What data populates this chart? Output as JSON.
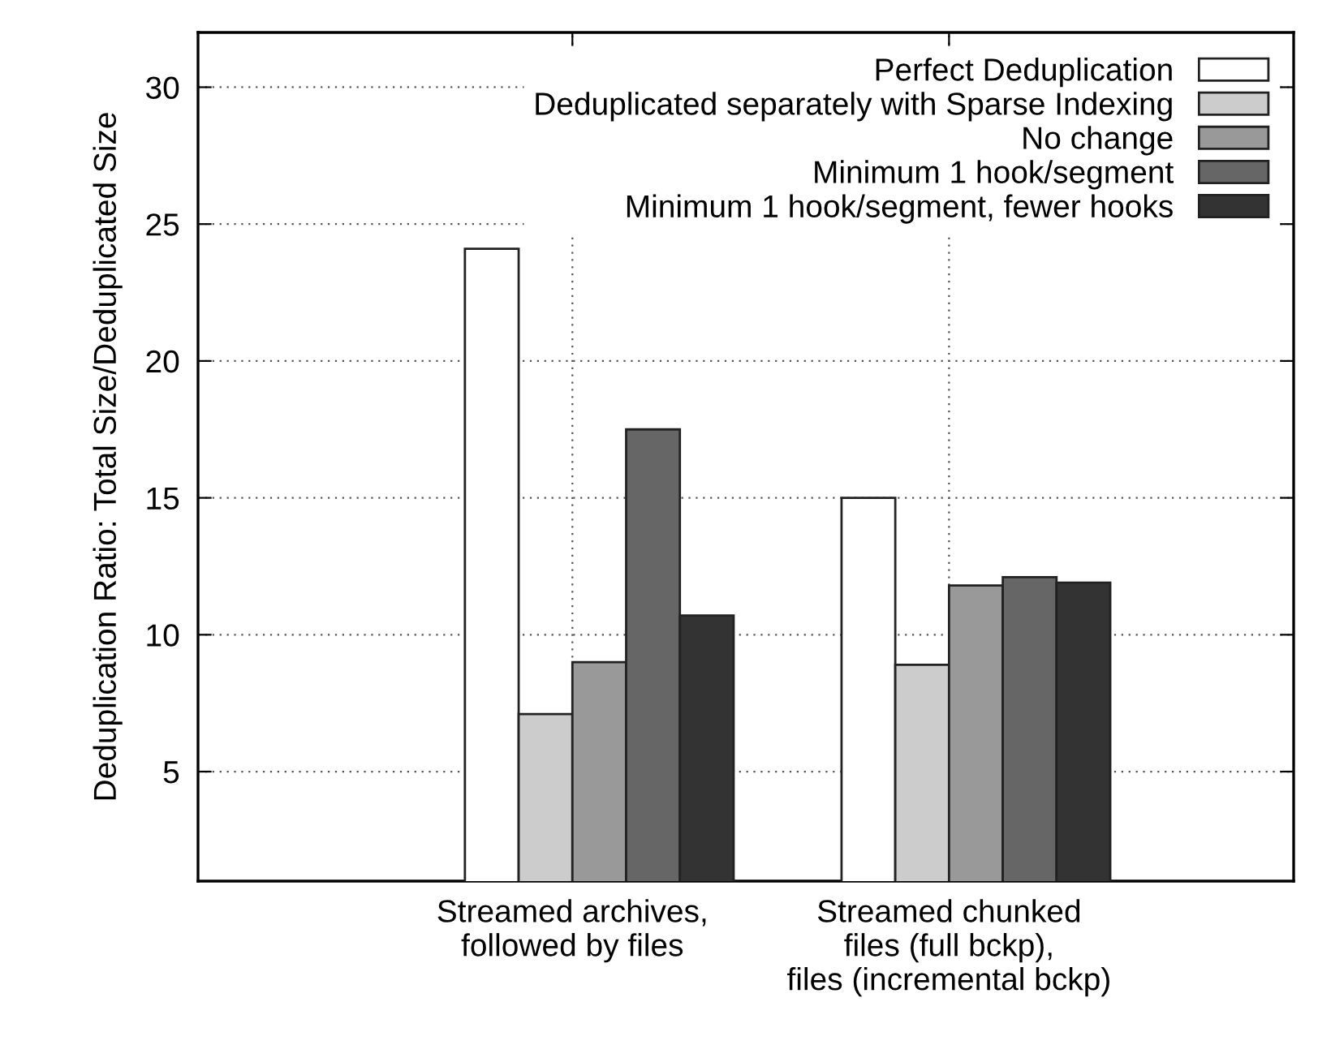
{
  "chart_data": {
    "type": "bar",
    "ylabel": "Deduplication Ratio: Total Size/Deduplicated Size",
    "categories": [
      "Streamed archives,\nfollowed by files",
      "Streamed chunked\nfiles (full bckp),\nfiles (incremental bckp)"
    ],
    "series": [
      {
        "name": "Perfect Deduplication",
        "color": "#ffffff",
        "values": [
          24.1,
          15.0
        ]
      },
      {
        "name": "Deduplicated separately with Sparse Indexing",
        "color": "#cccccc",
        "values": [
          7.1,
          8.9
        ]
      },
      {
        "name": "No change",
        "color": "#999999",
        "values": [
          9.0,
          11.8
        ]
      },
      {
        "name": "Minimum 1 hook/segment",
        "color": "#666666",
        "values": [
          17.5,
          12.1
        ]
      },
      {
        "name": "Minimum 1 hook/segment, fewer hooks",
        "color": "#333333",
        "values": [
          10.7,
          11.9
        ]
      }
    ],
    "ylim": [
      1,
      32
    ],
    "yticks": [
      5,
      10,
      15,
      20,
      25,
      30
    ],
    "grid": true,
    "legend": "top right"
  }
}
